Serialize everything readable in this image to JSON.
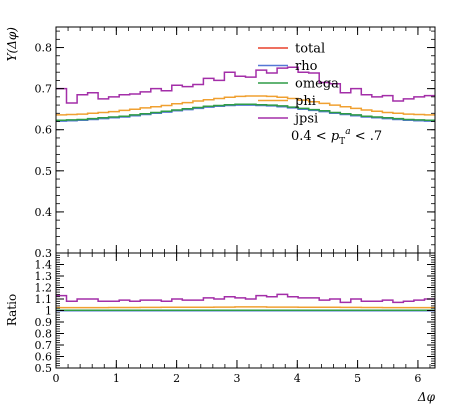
{
  "chart_data": [
    {
      "type": "line",
      "panel": "main",
      "ylabel": "Y(Δφ)",
      "xlim": [
        0,
        6.283
      ],
      "ylim": [
        0.3,
        0.85
      ],
      "yticks": [
        0.3,
        0.4,
        0.5,
        0.6,
        0.7,
        0.8
      ],
      "ytick_labels": [
        "0.3",
        "0.4",
        "0.5",
        "0.6",
        "0.7",
        "0.8"
      ],
      "grid": false,
      "legend_position": "top-right",
      "annotation": "0.4 < p_T^a < .7",
      "series": [
        {
          "name": "total",
          "color": "#e8412c",
          "values": [
            0.622,
            0.623,
            0.624,
            0.626,
            0.628,
            0.63,
            0.632,
            0.635,
            0.638,
            0.641,
            0.644,
            0.647,
            0.65,
            0.653,
            0.656,
            0.658,
            0.66,
            0.661,
            0.661,
            0.66,
            0.659,
            0.657,
            0.654,
            0.651,
            0.648,
            0.645,
            0.641,
            0.638,
            0.635,
            0.632,
            0.63,
            0.628,
            0.626,
            0.624,
            0.623,
            0.622
          ]
        },
        {
          "name": "rho",
          "color": "#5577d6",
          "values": [
            0.621,
            0.622,
            0.623,
            0.625,
            0.627,
            0.629,
            0.631,
            0.634,
            0.637,
            0.64,
            0.643,
            0.646,
            0.649,
            0.652,
            0.655,
            0.657,
            0.659,
            0.66,
            0.66,
            0.659,
            0.658,
            0.656,
            0.653,
            0.65,
            0.647,
            0.644,
            0.64,
            0.637,
            0.634,
            0.631,
            0.629,
            0.627,
            0.625,
            0.623,
            0.622,
            0.621
          ]
        },
        {
          "name": "omega",
          "color": "#2e9c47",
          "values": [
            0.623,
            0.624,
            0.625,
            0.627,
            0.629,
            0.631,
            0.633,
            0.636,
            0.639,
            0.642,
            0.645,
            0.648,
            0.651,
            0.654,
            0.657,
            0.659,
            0.661,
            0.662,
            0.662,
            0.661,
            0.66,
            0.658,
            0.655,
            0.652,
            0.649,
            0.646,
            0.642,
            0.639,
            0.636,
            0.633,
            0.631,
            0.629,
            0.627,
            0.625,
            0.624,
            0.623
          ]
        },
        {
          "name": "phi",
          "color": "#f0a030",
          "values": [
            0.636,
            0.637,
            0.638,
            0.64,
            0.642,
            0.644,
            0.647,
            0.65,
            0.653,
            0.656,
            0.659,
            0.663,
            0.666,
            0.67,
            0.673,
            0.676,
            0.679,
            0.681,
            0.682,
            0.682,
            0.681,
            0.679,
            0.676,
            0.672,
            0.668,
            0.664,
            0.66,
            0.656,
            0.652,
            0.648,
            0.645,
            0.642,
            0.64,
            0.638,
            0.637,
            0.636
          ]
        },
        {
          "name": "jpsi",
          "color": "#a32ea8",
          "values": [
            0.7,
            0.665,
            0.685,
            0.69,
            0.675,
            0.68,
            0.685,
            0.687,
            0.692,
            0.7,
            0.695,
            0.708,
            0.705,
            0.71,
            0.725,
            0.72,
            0.74,
            0.73,
            0.728,
            0.745,
            0.738,
            0.75,
            0.752,
            0.74,
            0.738,
            0.715,
            0.712,
            0.69,
            0.7,
            0.685,
            0.68,
            0.683,
            0.67,
            0.675,
            0.68,
            0.683
          ]
        }
      ]
    },
    {
      "type": "line",
      "panel": "ratio",
      "xlabel": "Δφ",
      "ylabel": "Ratio",
      "xlim": [
        0,
        6.283
      ],
      "ylim": [
        0.5,
        1.5
      ],
      "xticks": [
        0,
        1,
        2,
        3,
        4,
        5,
        6
      ],
      "xtick_labels": [
        "0",
        "1",
        "2",
        "3",
        "4",
        "5",
        "6"
      ],
      "yticks": [
        0.5,
        0.6,
        0.7,
        0.8,
        0.9,
        1.0,
        1.1,
        1.2,
        1.3,
        1.4
      ],
      "ytick_labels": [
        "0.5",
        "0.6",
        "0.7",
        "0.8",
        "0.9",
        "1",
        "1.1",
        "1.2",
        "1.3",
        "1.4"
      ],
      "grid": false,
      "series": [
        {
          "name": "total",
          "color": "#e8412c",
          "values": [
            1.0,
            1.0,
            1.0,
            1.0,
            1.0,
            1.0,
            1.0,
            1.0,
            1.0,
            1.0,
            1.0,
            1.0,
            1.0,
            1.0,
            1.0,
            1.0,
            1.0,
            1.0,
            1.0,
            1.0,
            1.0,
            1.0,
            1.0,
            1.0,
            1.0,
            1.0,
            1.0,
            1.0,
            1.0,
            1.0,
            1.0,
            1.0,
            1.0,
            1.0,
            1.0,
            1.0
          ]
        },
        {
          "name": "rho",
          "color": "#5577d6",
          "values": [
            0.998,
            0.998,
            0.998,
            0.998,
            0.998,
            0.998,
            0.998,
            0.998,
            0.998,
            0.998,
            0.998,
            0.998,
            0.998,
            0.998,
            0.998,
            0.998,
            0.998,
            0.998,
            0.998,
            0.998,
            0.998,
            0.998,
            0.998,
            0.998,
            0.998,
            0.998,
            0.998,
            0.998,
            0.998,
            0.998,
            0.998,
            0.998,
            0.998,
            0.998,
            0.998,
            0.998
          ]
        },
        {
          "name": "omega",
          "color": "#2e9c47",
          "values": [
            1.002,
            1.002,
            1.002,
            1.002,
            1.002,
            1.002,
            1.002,
            1.002,
            1.002,
            1.002,
            1.002,
            1.002,
            1.002,
            1.002,
            1.002,
            1.002,
            1.002,
            1.002,
            1.002,
            1.002,
            1.002,
            1.002,
            1.002,
            1.002,
            1.002,
            1.002,
            1.002,
            1.002,
            1.002,
            1.002,
            1.002,
            1.002,
            1.002,
            1.002,
            1.002,
            1.002
          ]
        },
        {
          "name": "phi",
          "color": "#f0a030",
          "values": [
            1.025,
            1.025,
            1.025,
            1.025,
            1.025,
            1.026,
            1.026,
            1.026,
            1.027,
            1.027,
            1.028,
            1.028,
            1.028,
            1.029,
            1.029,
            1.03,
            1.03,
            1.031,
            1.031,
            1.031,
            1.03,
            1.03,
            1.03,
            1.029,
            1.029,
            1.028,
            1.028,
            1.027,
            1.027,
            1.026,
            1.026,
            1.025,
            1.025,
            1.025,
            1.025,
            1.025
          ]
        },
        {
          "name": "jpsi",
          "color": "#a32ea8",
          "values": [
            1.13,
            1.08,
            1.1,
            1.1,
            1.08,
            1.08,
            1.09,
            1.08,
            1.09,
            1.09,
            1.08,
            1.1,
            1.09,
            1.09,
            1.11,
            1.1,
            1.12,
            1.11,
            1.1,
            1.13,
            1.12,
            1.14,
            1.12,
            1.11,
            1.11,
            1.09,
            1.1,
            1.07,
            1.1,
            1.08,
            1.08,
            1.09,
            1.07,
            1.08,
            1.09,
            1.1
          ]
        }
      ]
    }
  ]
}
